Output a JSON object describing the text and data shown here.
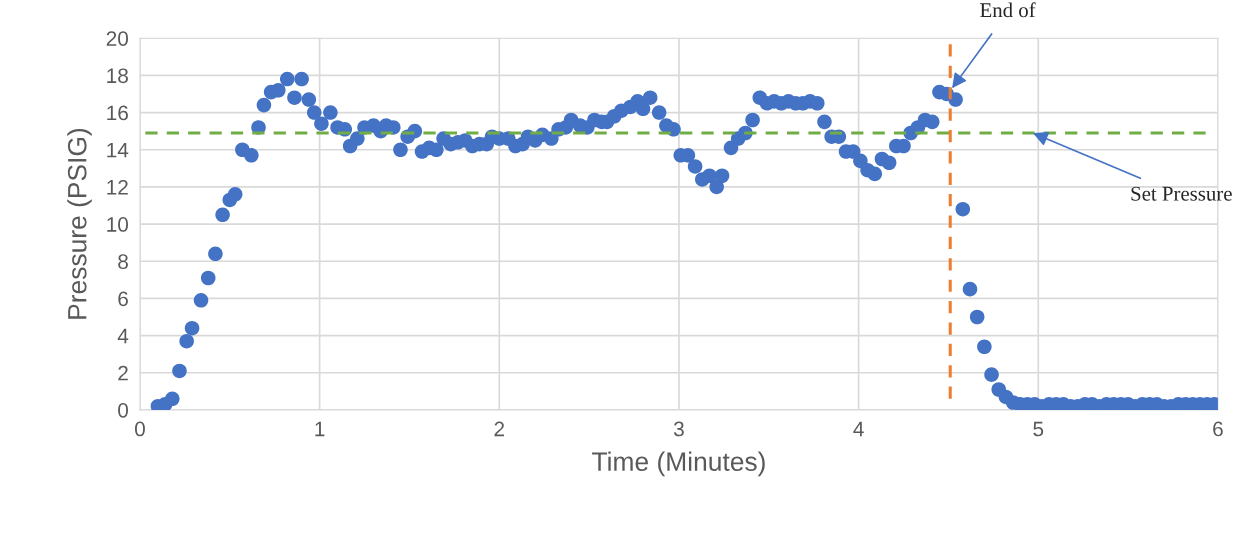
{
  "chart_data": {
    "type": "scatter",
    "xlabel": "Time (Minutes)",
    "ylabel": "Pressure (PSIG)",
    "xlim": [
      0,
      6
    ],
    "xticks": [
      0,
      1,
      2,
      3,
      4,
      5,
      6
    ],
    "ylim": [
      0,
      20
    ],
    "yticks": [
      0,
      2,
      4,
      6,
      8,
      10,
      12,
      14,
      16,
      18,
      20
    ],
    "grid": true,
    "marker": "circle",
    "series": [
      {
        "color": "#4472c4",
        "x": [
          0.1,
          0.14,
          0.18,
          0.22,
          0.26,
          0.29,
          0.34,
          0.38,
          0.42,
          0.46,
          0.5,
          0.53,
          0.57,
          0.62,
          0.66,
          0.69,
          0.73,
          0.77,
          0.82,
          0.86,
          0.9,
          0.94,
          0.97,
          1.01,
          1.06,
          1.1,
          1.14,
          1.17,
          1.21,
          1.25,
          1.3,
          1.34,
          1.37,
          1.41,
          1.45,
          1.49,
          1.53,
          1.57,
          1.61,
          1.65,
          1.69,
          1.73,
          1.77,
          1.81,
          1.85,
          1.89,
          1.93,
          1.96,
          2.0,
          2.05,
          2.09,
          2.13,
          2.16,
          2.2,
          2.24,
          2.29,
          2.33,
          2.37,
          2.4,
          2.45,
          2.49,
          2.53,
          2.57,
          2.6,
          2.64,
          2.68,
          2.73,
          2.77,
          2.8,
          2.84,
          2.89,
          2.93,
          2.97,
          3.01,
          3.05,
          3.09,
          3.13,
          3.17,
          3.21,
          3.24,
          3.29,
          3.33,
          3.37,
          3.41,
          3.45,
          3.49,
          3.53,
          3.57,
          3.61,
          3.65,
          3.69,
          3.73,
          3.77,
          3.81,
          3.85,
          3.89,
          3.93,
          3.97,
          4.01,
          4.05,
          4.09,
          4.13,
          4.17,
          4.21,
          4.25,
          4.29,
          4.33,
          4.37,
          4.41,
          4.45,
          4.49,
          4.54,
          4.58,
          4.62,
          4.66,
          4.7,
          4.74,
          4.78,
          4.82,
          4.86,
          4.9,
          4.94,
          4.98,
          5.02,
          5.06,
          5.1,
          5.14,
          5.18,
          5.22,
          5.26,
          5.3,
          5.34,
          5.38,
          5.42,
          5.46,
          5.5,
          5.54,
          5.58,
          5.62,
          5.66,
          5.7,
          5.74,
          5.78,
          5.82,
          5.86,
          5.9,
          5.94,
          5.98
        ],
        "values": [
          0.2,
          0.3,
          0.6,
          2.1,
          3.7,
          4.4,
          5.9,
          7.1,
          8.4,
          10.5,
          11.3,
          11.6,
          14.0,
          13.7,
          15.2,
          16.4,
          17.1,
          17.2,
          17.8,
          16.8,
          17.8,
          16.7,
          16.0,
          15.4,
          16.0,
          15.2,
          15.1,
          14.2,
          14.6,
          15.2,
          15.3,
          15.0,
          15.3,
          15.2,
          14.0,
          14.7,
          15.0,
          13.9,
          14.1,
          14.0,
          14.6,
          14.3,
          14.4,
          14.5,
          14.2,
          14.3,
          14.3,
          14.7,
          14.6,
          14.6,
          14.2,
          14.3,
          14.7,
          14.5,
          14.8,
          14.6,
          15.1,
          15.2,
          15.6,
          15.3,
          15.2,
          15.6,
          15.5,
          15.5,
          15.8,
          16.1,
          16.3,
          16.6,
          16.2,
          16.8,
          16.0,
          15.3,
          15.1,
          13.7,
          13.7,
          13.1,
          12.4,
          12.6,
          12.0,
          12.6,
          14.1,
          14.6,
          14.9,
          15.6,
          16.8,
          16.5,
          16.6,
          16.5,
          16.6,
          16.5,
          16.5,
          16.6,
          16.5,
          15.5,
          14.7,
          14.7,
          13.9,
          13.9,
          13.4,
          12.9,
          12.7,
          13.5,
          13.3,
          14.2,
          14.2,
          14.9,
          15.2,
          15.6,
          15.5,
          17.1,
          17.0,
          16.7,
          10.8,
          6.5,
          5.0,
          3.4,
          1.9,
          1.1,
          0.7,
          0.4,
          0.3,
          0.3,
          0.3,
          0.2,
          0.3,
          0.3,
          0.3,
          0.2,
          0.2,
          0.3,
          0.3,
          0.2,
          0.3,
          0.3,
          0.3,
          0.3,
          0.2,
          0.3,
          0.3,
          0.3,
          0.2,
          0.2,
          0.3,
          0.3,
          0.3,
          0.3,
          0.3,
          0.3
        ]
      }
    ],
    "ref_lines": [
      {
        "axis": "y",
        "value": 14.9,
        "color": "#70ad47",
        "line_style": "dashed"
      },
      {
        "axis": "x",
        "value": 4.51,
        "color": "#ed7d31",
        "line_style": "dashed"
      }
    ],
    "annotations": [
      {
        "text": "End of",
        "x": 4.52,
        "y": 17.3
      },
      {
        "text": "Set Pressure",
        "x": 4.97,
        "y": 14.9
      }
    ]
  }
}
